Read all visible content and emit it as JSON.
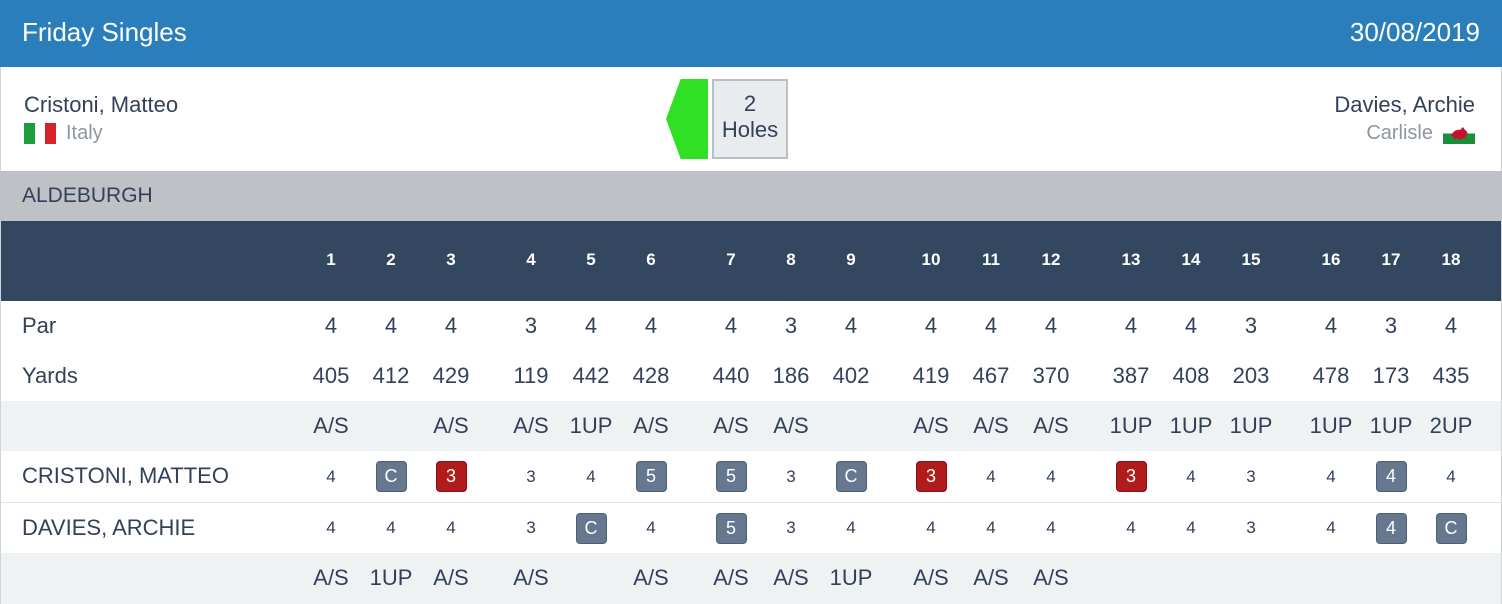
{
  "header": {
    "title": "Friday Singles",
    "date": "30/08/2019"
  },
  "player1": {
    "name": "Cristoni, Matteo",
    "country": "Italy",
    "flag": "italy-flag"
  },
  "player2": {
    "name": "Davies, Archie",
    "club": "Carlisle",
    "flag": "wales-flag"
  },
  "result": {
    "line1": "2",
    "line2": "Holes",
    "indicator_color": "#2fe024"
  },
  "course": {
    "name": "ALDEBURGH"
  },
  "scorecard": {
    "holes": [
      "1",
      "2",
      "3",
      "4",
      "5",
      "6",
      "7",
      "8",
      "9",
      "10",
      "11",
      "12",
      "13",
      "14",
      "15",
      "16",
      "17",
      "18"
    ],
    "par_label": "Par",
    "par": [
      "4",
      "4",
      "4",
      "3",
      "4",
      "4",
      "4",
      "3",
      "4",
      "4",
      "4",
      "4",
      "4",
      "4",
      "3",
      "4",
      "3",
      "4"
    ],
    "yards_label": "Yards",
    "yards": [
      "405",
      "412",
      "429",
      "119",
      "442",
      "428",
      "440",
      "186",
      "402",
      "419",
      "467",
      "370",
      "387",
      "408",
      "203",
      "478",
      "173",
      "435"
    ],
    "status_p1": [
      "A/S",
      "",
      "A/S",
      "A/S",
      "1UP",
      "A/S",
      "A/S",
      "A/S",
      "",
      "A/S",
      "A/S",
      "A/S",
      "1UP",
      "1UP",
      "1UP",
      "1UP",
      "1UP",
      "2UP"
    ],
    "player1_label": "CRISTONI, MATTEO",
    "player1_scores": [
      "4",
      "C",
      "3",
      "3",
      "4",
      "5",
      "5",
      "3",
      "C",
      "3",
      "4",
      "4",
      "3",
      "4",
      "3",
      "4",
      "4",
      "4"
    ],
    "player1_marks": [
      "",
      "grey",
      "red",
      "",
      "",
      "grey",
      "grey",
      "",
      "grey",
      "red",
      "",
      "",
      "red",
      "",
      "",
      "",
      "grey",
      ""
    ],
    "player2_label": "DAVIES, ARCHIE",
    "player2_scores": [
      "4",
      "4",
      "4",
      "3",
      "C",
      "4",
      "5",
      "3",
      "4",
      "4",
      "4",
      "4",
      "4",
      "4",
      "3",
      "4",
      "4",
      "C"
    ],
    "player2_marks": [
      "",
      "",
      "",
      "",
      "grey",
      "",
      "grey",
      "",
      "",
      "",
      "",
      "",
      "",
      "",
      "",
      "",
      "grey",
      "grey"
    ],
    "status_p2": [
      "A/S",
      "1UP",
      "A/S",
      "A/S",
      "",
      "A/S",
      "A/S",
      "A/S",
      "1UP",
      "A/S",
      "A/S",
      "A/S",
      "",
      "",
      "",
      "",
      "",
      ""
    ]
  },
  "colors": {
    "header_bg": "#2a7ebc",
    "table_header_bg": "#344761",
    "course_bar_bg": "#bec2c6",
    "badge_grey": "#66788f",
    "badge_red": "#b01c1c"
  }
}
